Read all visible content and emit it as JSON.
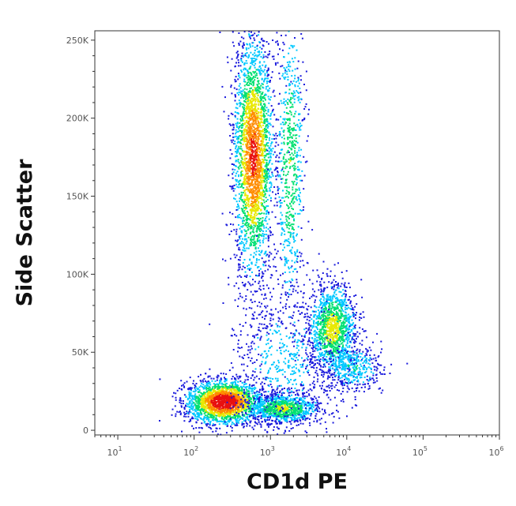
{
  "chart_data": {
    "type": "scatter",
    "title": "",
    "xlabel": "CD1d PE",
    "ylabel": "Side Scatter",
    "x_scale": "log",
    "xlim": [
      5,
      1000000
    ],
    "ylim": [
      -3000,
      256000
    ],
    "x_ticks": [
      {
        "value": 10,
        "base": "10",
        "exp": "1"
      },
      {
        "value": 100,
        "base": "10",
        "exp": "2"
      },
      {
        "value": 1000,
        "base": "10",
        "exp": "3"
      },
      {
        "value": 10000,
        "base": "10",
        "exp": "4"
      },
      {
        "value": 100000,
        "base": "10",
        "exp": "5"
      },
      {
        "value": 1000000,
        "base": "10",
        "exp": "6"
      }
    ],
    "y_ticks": [
      {
        "value": 0,
        "label": "0"
      },
      {
        "value": 50000,
        "label": "50K"
      },
      {
        "value": 100000,
        "label": "100K"
      },
      {
        "value": 150000,
        "label": "150K"
      },
      {
        "value": 200000,
        "label": "200K"
      },
      {
        "value": 250000,
        "label": "250K"
      }
    ],
    "grid": false,
    "color_scale": [
      "#1a1adc",
      "#00c8ff",
      "#00e070",
      "#e8e800",
      "#ff8c00",
      "#e81010"
    ],
    "populations": [
      {
        "x_center": 600,
        "y_center": 175000,
        "x_spread_decades": 0.13,
        "y_spread": 38000,
        "points": 2600,
        "peak_density": 0.85
      },
      {
        "x_center": 1800,
        "y_center": 170000,
        "x_spread_decades": 0.1,
        "y_spread": 50000,
        "points": 700,
        "peak_density": 0.45
      },
      {
        "x_center": 250,
        "y_center": 18000,
        "x_spread_decades": 0.25,
        "y_spread": 7000,
        "points": 2200,
        "peak_density": 1.0
      },
      {
        "x_center": 1500,
        "y_center": 14000,
        "x_spread_decades": 0.25,
        "y_spread": 5000,
        "points": 900,
        "peak_density": 0.5
      },
      {
        "x_center": 6500,
        "y_center": 65000,
        "x_spread_decades": 0.16,
        "y_spread": 15000,
        "points": 1300,
        "peak_density": 0.55
      },
      {
        "x_center": 12000,
        "y_center": 40000,
        "x_spread_decades": 0.2,
        "y_spread": 8000,
        "points": 400,
        "peak_density": 0.3
      },
      {
        "x_center": 1500,
        "y_center": 45000,
        "x_spread_decades": 0.35,
        "y_spread": 25000,
        "points": 600,
        "peak_density": 0.2
      }
    ]
  }
}
